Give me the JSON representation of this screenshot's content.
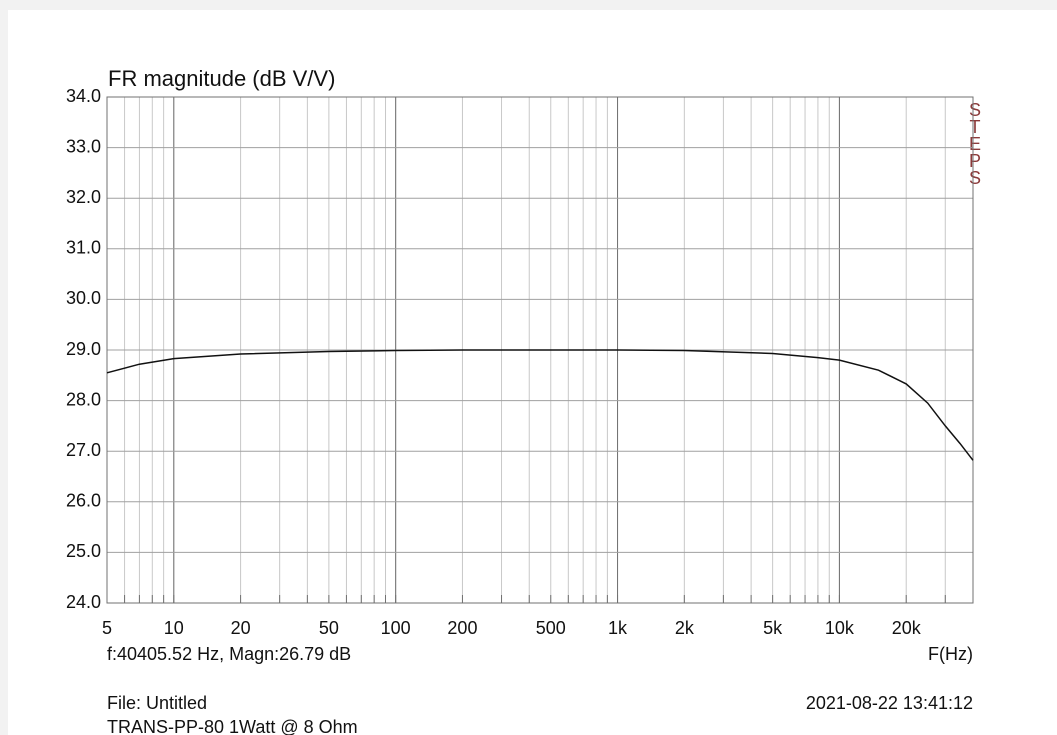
{
  "chart_data": {
    "type": "line",
    "title": "FR magnitude (dB V/V)",
    "side_label": "STEPS",
    "cursor_readout": "f:40405.52 Hz, Magn:26.79 dB",
    "xlabel": "F(Hz)",
    "file_label": "File: Untitled",
    "timestamp": "2021-08-22 13:41:12",
    "description": "TRANS-PP-80  1Watt @ 8 Ohm",
    "xscale": "log",
    "grid": true,
    "xlim": [
      5,
      40000
    ],
    "ylim": [
      24,
      34
    ],
    "xticks": [
      5,
      10,
      20,
      50,
      100,
      200,
      500,
      {
        "value": 1000,
        "label": "1k"
      },
      {
        "value": 2000,
        "label": "2k"
      },
      {
        "value": 5000,
        "label": "5k"
      },
      {
        "value": 10000,
        "label": "10k"
      },
      {
        "value": 20000,
        "label": "20k"
      }
    ],
    "xminorticks": [
      6,
      7,
      8,
      9,
      30,
      40,
      60,
      70,
      80,
      90,
      300,
      400,
      600,
      700,
      800,
      900,
      3000,
      4000,
      6000,
      7000,
      8000,
      9000,
      30000
    ],
    "xmajorticks": [
      10,
      100,
      1000,
      10000
    ],
    "yticks": [
      {
        "value": 24,
        "label": "24.0"
      },
      {
        "value": 25,
        "label": "25.0"
      },
      {
        "value": 26,
        "label": "26.0"
      },
      {
        "value": 27,
        "label": "27.0"
      },
      {
        "value": 28,
        "label": "28.0"
      },
      {
        "value": 29,
        "label": "29.0"
      },
      {
        "value": 30,
        "label": "30.0"
      },
      {
        "value": 31,
        "label": "31.0"
      },
      {
        "value": 32,
        "label": "32.0"
      },
      {
        "value": 33,
        "label": "33.0"
      },
      {
        "value": 34,
        "label": "34.0"
      }
    ],
    "x": [
      5,
      7,
      10,
      20,
      50,
      100,
      200,
      500,
      1000,
      2000,
      5000,
      8000,
      10000,
      15000,
      20000,
      25000,
      30000,
      35000,
      40000
    ],
    "series": [
      {
        "color": "#111111",
        "values": [
          28.55,
          28.72,
          28.83,
          28.92,
          28.97,
          28.99,
          29.0,
          29.0,
          29.0,
          28.99,
          28.93,
          28.85,
          28.8,
          28.6,
          28.33,
          27.95,
          27.5,
          27.15,
          26.82
        ]
      }
    ]
  }
}
